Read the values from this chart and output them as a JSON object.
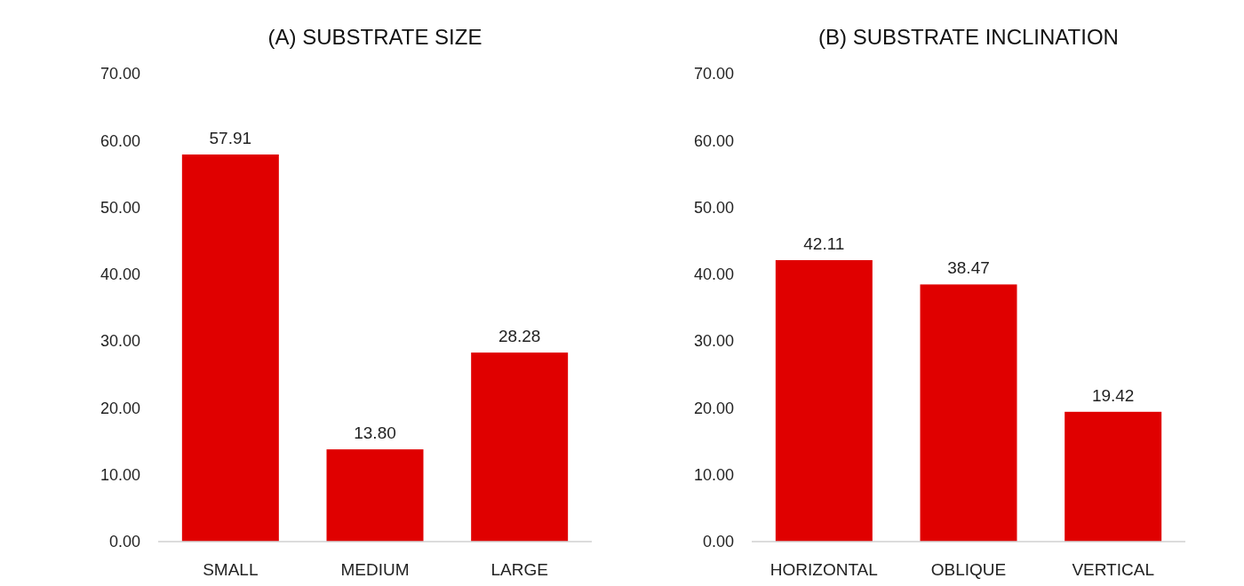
{
  "chart_data": [
    {
      "type": "bar",
      "title": "(A) SUBSTRATE SIZE",
      "categories": [
        "SMALL",
        "MEDIUM",
        "LARGE"
      ],
      "values": [
        57.91,
        13.8,
        28.28
      ],
      "value_labels": [
        "57.91",
        "13.80",
        "28.28"
      ],
      "color": "#e00000",
      "ylim": [
        0,
        70
      ],
      "yticks": [
        {
          "value": 0,
          "label": "0.00"
        },
        {
          "value": 10,
          "label": "10.00"
        },
        {
          "value": 20,
          "label": "20.00"
        },
        {
          "value": 30,
          "label": "30.00"
        },
        {
          "value": 40,
          "label": "40.00"
        },
        {
          "value": 50,
          "label": "50.00"
        },
        {
          "value": 60,
          "label": "60.00"
        },
        {
          "value": 70,
          "label": "70.00"
        }
      ]
    },
    {
      "type": "bar",
      "title": "(B) SUBSTRATE INCLINATION",
      "categories": [
        "HORIZONTAL",
        "OBLIQUE",
        "VERTICAL"
      ],
      "values": [
        42.11,
        38.47,
        19.42
      ],
      "value_labels": [
        "42.11",
        "38.47",
        "19.42"
      ],
      "color": "#e00000",
      "ylim": [
        0,
        70
      ],
      "yticks": [
        {
          "value": 0,
          "label": "0.00"
        },
        {
          "value": 10,
          "label": "10.00"
        },
        {
          "value": 20,
          "label": "20.00"
        },
        {
          "value": 30,
          "label": "30.00"
        },
        {
          "value": 40,
          "label": "40.00"
        },
        {
          "value": 50,
          "label": "50.00"
        },
        {
          "value": 60,
          "label": "60.00"
        },
        {
          "value": 70,
          "label": "70.00"
        }
      ]
    }
  ]
}
